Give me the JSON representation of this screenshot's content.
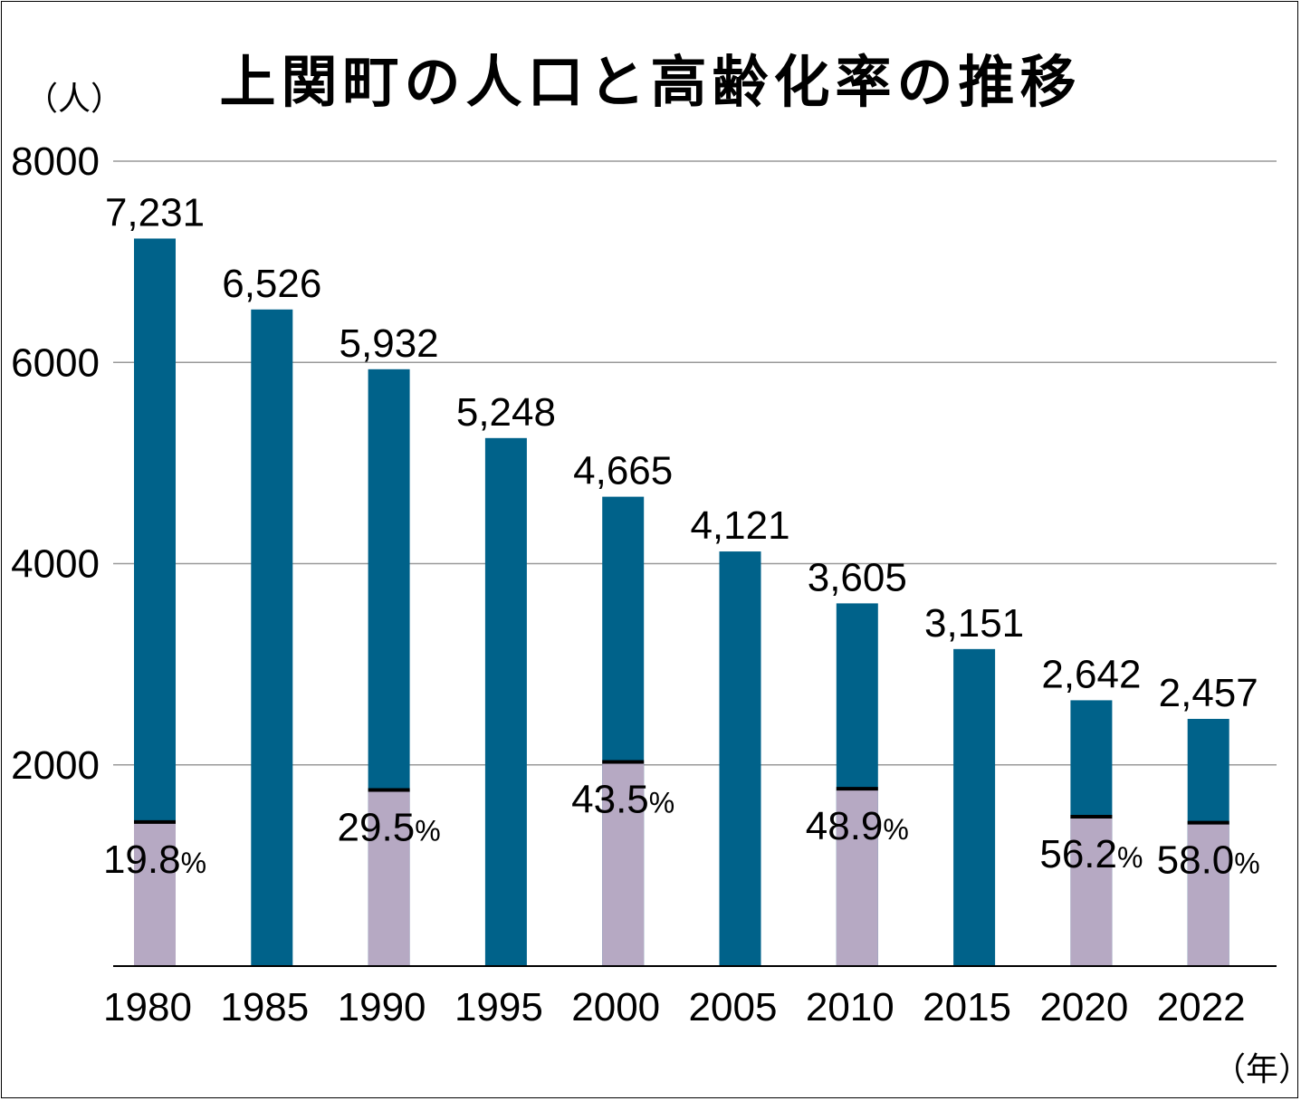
{
  "title": "上関町の人口と高齢化率の推移",
  "y_unit": "（人）",
  "x_unit": "（年）",
  "percent_sign": "%",
  "colors": {
    "population": "#00628a",
    "elderly": "#b6a9c3",
    "grid": "#999999",
    "axis": "#000000"
  },
  "chart_data": {
    "type": "bar",
    "title": "上関町の人口と高齢化率の推移",
    "xlabel": "（年）",
    "ylabel": "（人）",
    "ylim": [
      0,
      8000
    ],
    "yticks": [
      2000,
      4000,
      6000,
      8000
    ],
    "categories": [
      "1980",
      "1985",
      "1990",
      "1995",
      "2000",
      "2005",
      "2010",
      "2015",
      "2020",
      "2022"
    ],
    "series": [
      {
        "name": "人口",
        "values": [
          7231,
          6526,
          5932,
          5248,
          4665,
          4121,
          3605,
          3151,
          2642,
          2457
        ],
        "labels": [
          "7,231",
          "6,526",
          "5,932",
          "5,248",
          "4,665",
          "4,121",
          "3,605",
          "3,151",
          "2,642",
          "2,457"
        ]
      },
      {
        "name": "高齢化率",
        "values": [
          19.8,
          null,
          29.5,
          null,
          43.5,
          null,
          48.9,
          null,
          56.2,
          58.0
        ],
        "labels": [
          "19.8",
          "",
          "29.5",
          "",
          "43.5",
          "",
          "48.9",
          "",
          "56.2",
          "58.0"
        ]
      }
    ]
  }
}
